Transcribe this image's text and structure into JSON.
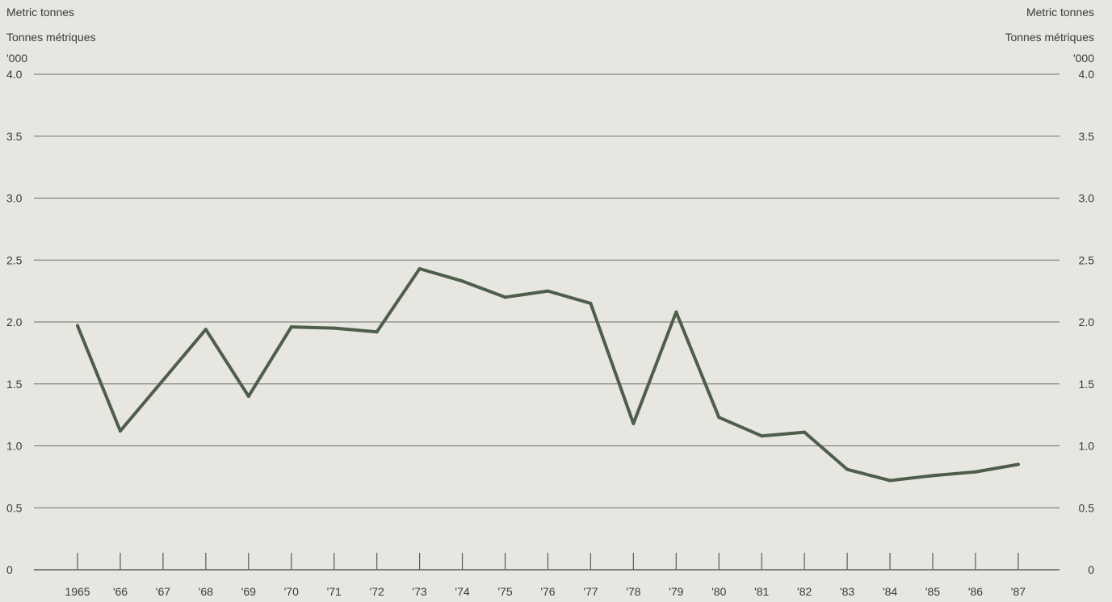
{
  "colors": {
    "background": "#e7e6e1",
    "series": "#4e5e4a",
    "grid": "#6e6e6a",
    "text": "#3a3a3a"
  },
  "chart_data": {
    "type": "line",
    "title": "",
    "y_units_left": [
      "Metric tonnes",
      "Tonnes métriques",
      "'000"
    ],
    "y_units_right": [
      "Metric tonnes",
      "Tonnes métriques",
      "'000"
    ],
    "ylim": [
      0,
      4.0
    ],
    "y_ticks": [
      {
        "value": 0,
        "label": "0"
      },
      {
        "value": 0.5,
        "label": "0.5"
      },
      {
        "value": 1.0,
        "label": "1.0"
      },
      {
        "value": 1.5,
        "label": "1.5"
      },
      {
        "value": 2.0,
        "label": "2.0"
      },
      {
        "value": 2.5,
        "label": "2.5"
      },
      {
        "value": 3.0,
        "label": "3.0"
      },
      {
        "value": 3.5,
        "label": "3.5"
      },
      {
        "value": 4.0,
        "label": "4.0"
      }
    ],
    "grid": true,
    "categories": [
      "1965",
      "'66",
      "'67",
      "'68",
      "'69",
      "'70",
      "'71",
      "'72",
      "'73",
      "'74",
      "'75",
      "'76",
      "'77",
      "'78",
      "'79",
      "'80",
      "'81",
      "'82",
      "'83",
      "'84",
      "'85",
      "'86",
      "'87"
    ],
    "series": [
      {
        "values": [
          1.97,
          1.12,
          1.53,
          1.94,
          1.4,
          1.96,
          1.95,
          1.92,
          2.43,
          2.33,
          2.2,
          2.25,
          2.15,
          1.18,
          2.08,
          1.23,
          1.08,
          1.11,
          0.81,
          0.72,
          0.76,
          0.79,
          0.85
        ]
      }
    ]
  }
}
